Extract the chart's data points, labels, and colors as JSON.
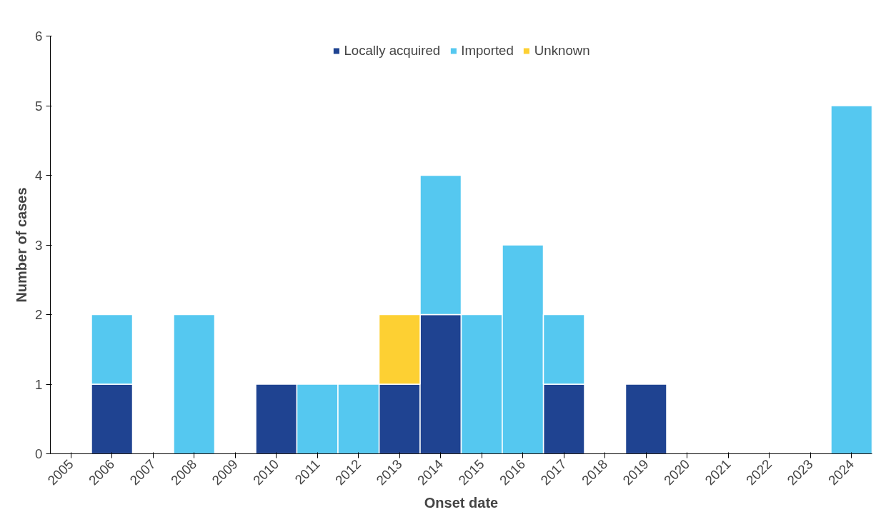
{
  "chart_data": {
    "type": "bar",
    "stacked": true,
    "xlabel": "Onset date",
    "ylabel": "Number of cases",
    "categories": [
      "2005",
      "2006",
      "2007",
      "2008",
      "2009",
      "2010",
      "2011",
      "2012",
      "2013",
      "2014",
      "2015",
      "2016",
      "2017",
      "2018",
      "2019",
      "2020",
      "2021",
      "2022",
      "2023",
      "2024"
    ],
    "series": [
      {
        "name": "Locally acquired",
        "color": "#1f4391",
        "values": [
          null,
          1,
          null,
          null,
          null,
          1,
          null,
          null,
          1,
          2,
          null,
          null,
          1,
          null,
          1,
          null,
          null,
          null,
          null,
          null
        ]
      },
      {
        "name": "Imported",
        "color": "#55c8f0",
        "values": [
          null,
          1,
          null,
          2,
          null,
          null,
          1,
          1,
          null,
          2,
          2,
          3,
          1,
          null,
          null,
          null,
          null,
          null,
          null,
          5
        ]
      },
      {
        "name": "Unknown",
        "color": "#fdd033",
        "values": [
          null,
          null,
          null,
          null,
          null,
          null,
          null,
          null,
          1,
          null,
          null,
          null,
          null,
          null,
          null,
          null,
          null,
          null,
          null,
          null
        ]
      }
    ],
    "ylim": [
      0,
      6
    ],
    "yticks": [
      0,
      1,
      2,
      3,
      4,
      5,
      6
    ],
    "grid": false,
    "legend": "top"
  }
}
